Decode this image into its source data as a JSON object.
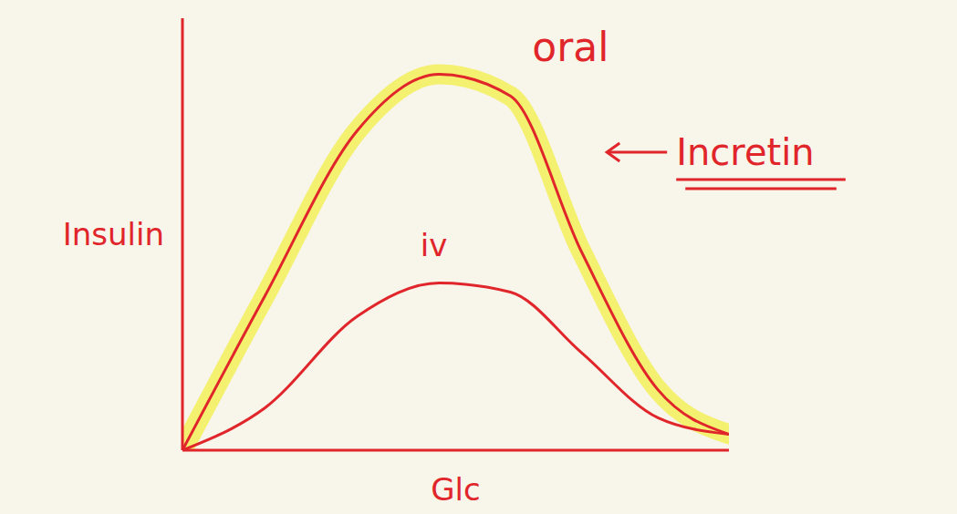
{
  "chart_data": {
    "type": "line",
    "x_label": "Glc",
    "y_label": "Insulin",
    "x": [
      0,
      1.5,
      3.2,
      4.7,
      6,
      7.3,
      8.7,
      10
    ],
    "series": [
      {
        "color": "#e0252b",
        "values": [
          0,
          3.55,
          7.4,
          8.7,
          8.2,
          4.6,
          1.4,
          0.37
        ]
      },
      {
        "color": "#e0252b",
        "values": [
          0,
          0.97,
          3.1,
          3.87,
          3.66,
          2.26,
          0.75,
          0.37
        ]
      }
    ],
    "xlim": [
      0,
      10
    ],
    "ylim": [
      0,
      10
    ],
    "tick_labels": false,
    "grid": false,
    "annotations": [
      {
        "text": "oral",
        "x": 6.4,
        "y": 9.0
      },
      {
        "text": "iv",
        "x": 4.6,
        "y": 4.5
      },
      {
        "text": "Incretin",
        "x": 7.7,
        "y": 6.9
      }
    ]
  }
}
